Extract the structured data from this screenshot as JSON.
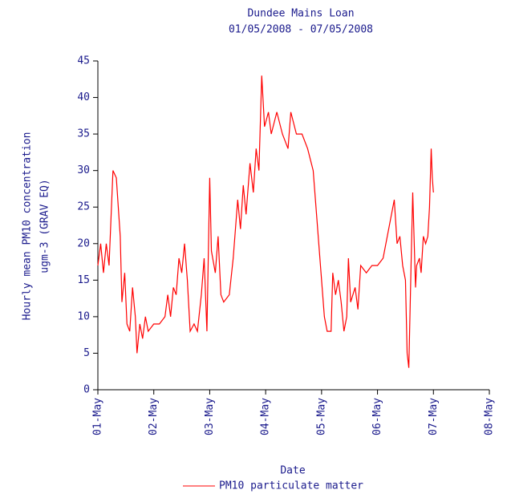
{
  "chart_data": {
    "type": "line",
    "title": "Dundee Mains Loan",
    "subtitle": "01/05/2008 - 07/05/2008",
    "y_label": [
      "Hourly mean PM10 concentration",
      "ugm-3 (GRAV EQ)"
    ],
    "x_label": "Date",
    "xlim": [
      0,
      7
    ],
    "xticks": [
      {
        "value": 0,
        "label": "01-May"
      },
      {
        "value": 1,
        "label": "02-May"
      },
      {
        "value": 2,
        "label": "03-May"
      },
      {
        "value": 3,
        "label": "04-May"
      },
      {
        "value": 4,
        "label": "05-May"
      },
      {
        "value": 5,
        "label": "06-May"
      },
      {
        "value": 6,
        "label": "07-May"
      },
      {
        "value": 7,
        "label": "08-May"
      }
    ],
    "ylim": [
      0,
      45
    ],
    "yticks": [
      0,
      5,
      10,
      15,
      20,
      25,
      30,
      35,
      40,
      45
    ],
    "legend": "bottom",
    "x": [
      0,
      0.05,
      0.1,
      0.15,
      0.2,
      0.27,
      0.33,
      0.4,
      0.43,
      0.48,
      0.52,
      0.57,
      0.62,
      0.67,
      0.7,
      0.75,
      0.8,
      0.85,
      0.9,
      1.0,
      1.1,
      1.2,
      1.25,
      1.3,
      1.35,
      1.4,
      1.45,
      1.5,
      1.55,
      1.6,
      1.65,
      1.72,
      1.78,
      1.85,
      1.9,
      1.95,
      2.0,
      2.03,
      2.1,
      2.15,
      2.2,
      2.25,
      2.35,
      2.42,
      2.5,
      2.55,
      2.6,
      2.65,
      2.72,
      2.78,
      2.83,
      2.88,
      2.93,
      2.98,
      3.05,
      3.1,
      3.2,
      3.3,
      3.4,
      3.45,
      3.55,
      3.65,
      3.75,
      3.85,
      3.95,
      4.05,
      4.1,
      4.17,
      4.2,
      4.25,
      4.3,
      4.35,
      4.4,
      4.45,
      4.48,
      4.52,
      4.6,
      4.65,
      4.7,
      4.8,
      4.9,
      5.0,
      5.1,
      5.3,
      5.35,
      5.4,
      5.45,
      5.5,
      5.53,
      5.56,
      5.6,
      5.63,
      5.68,
      5.7,
      5.75,
      5.78,
      5.82,
      5.86,
      5.9,
      5.93,
      5.96,
      5.98,
      6.0
    ],
    "series": [
      {
        "name": "PM10 particulate matter",
        "color": "#ff0000",
        "values": [
          17,
          20,
          16,
          20,
          17,
          30,
          29,
          21,
          12,
          16,
          9,
          8,
          14,
          10,
          5,
          9,
          7,
          10,
          8,
          9,
          9,
          10,
          13,
          10,
          14,
          13,
          18,
          16,
          20,
          15,
          8,
          9,
          8,
          13,
          18,
          8,
          29,
          19,
          16,
          21,
          13,
          12,
          13,
          18,
          26,
          22,
          28,
          24,
          31,
          27,
          33,
          30,
          43,
          36,
          38,
          35,
          38,
          35,
          33,
          38,
          35,
          35,
          33,
          30,
          20,
          10,
          8,
          8,
          16,
          13,
          15,
          12,
          8,
          10,
          18,
          12,
          14,
          11,
          17,
          16,
          17,
          17,
          18,
          26,
          20,
          21,
          17,
          15,
          5,
          3,
          17,
          27,
          14,
          17,
          18,
          16,
          21,
          20,
          21,
          25,
          33,
          29,
          27
        ]
      }
    ]
  }
}
